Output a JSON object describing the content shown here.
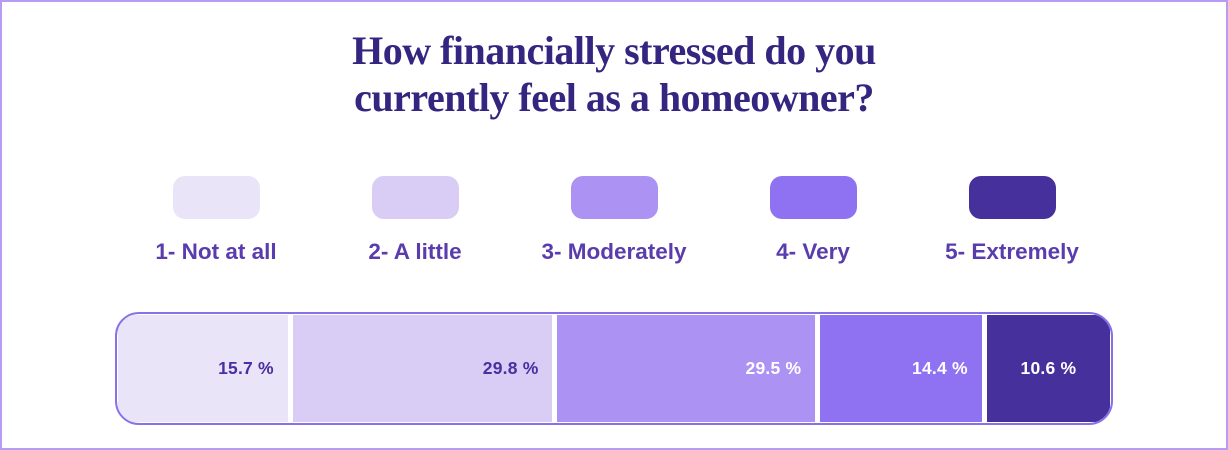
{
  "title": {
    "lines": [
      "How financially stressed do you",
      "currently feel as a homeowner?"
    ],
    "full": "How financially stressed do you currently feel as a homeowner?"
  },
  "legend": {
    "items": [
      {
        "label": "1- Not at all",
        "color": "#EAE4F9"
      },
      {
        "label": "2- A little",
        "color": "#D9CDF6"
      },
      {
        "label": "3- Moderately",
        "color": "#AC92F3"
      },
      {
        "label": "4- Very",
        "color": "#8F72F1"
      },
      {
        "label": "5- Extremely",
        "color": "#45309C"
      }
    ]
  },
  "bar": {
    "segments": [
      {
        "label": "15.7 %",
        "value": 15.7,
        "color": "#EAE4F9",
        "text_color": "#4A2FA0"
      },
      {
        "label": "29.8 %",
        "value": 29.8,
        "color": "#D9CDF6",
        "text_color": "#4A2FA0"
      },
      {
        "label": "29.5 %",
        "value": 29.5,
        "color": "#AC92F3",
        "text_color": "#FFFFFF"
      },
      {
        "label": "14.4 %",
        "value": 14.4,
        "color": "#8F72F1",
        "text_color": "#FFFFFF"
      },
      {
        "label": "10.6 %",
        "value": 10.6,
        "color": "#45309C",
        "text_color": "#FFFFFF"
      }
    ]
  },
  "chart_data": {
    "type": "bar",
    "variant": "stacked-horizontal",
    "title": "How financially stressed do you currently feel as a homeowner?",
    "categories": [
      "1- Not at all",
      "2- A little",
      "3- Moderately",
      "4- Very",
      "5- Extremely"
    ],
    "values": [
      15.7,
      29.8,
      29.5,
      14.4,
      10.6
    ],
    "unit": "%",
    "colors": [
      "#EAE4F9",
      "#D9CDF6",
      "#AC92F3",
      "#8F72F1",
      "#45309C"
    ],
    "legend_position": "top",
    "grid": false,
    "axes": false
  },
  "colors": {
    "page_border": "#B79BF4",
    "background": "#FFFFFF",
    "title_text": "#342580",
    "legend_text": "#5A3CAD",
    "bar_border": "#8A70E8",
    "separator": "#FFFFFF"
  }
}
